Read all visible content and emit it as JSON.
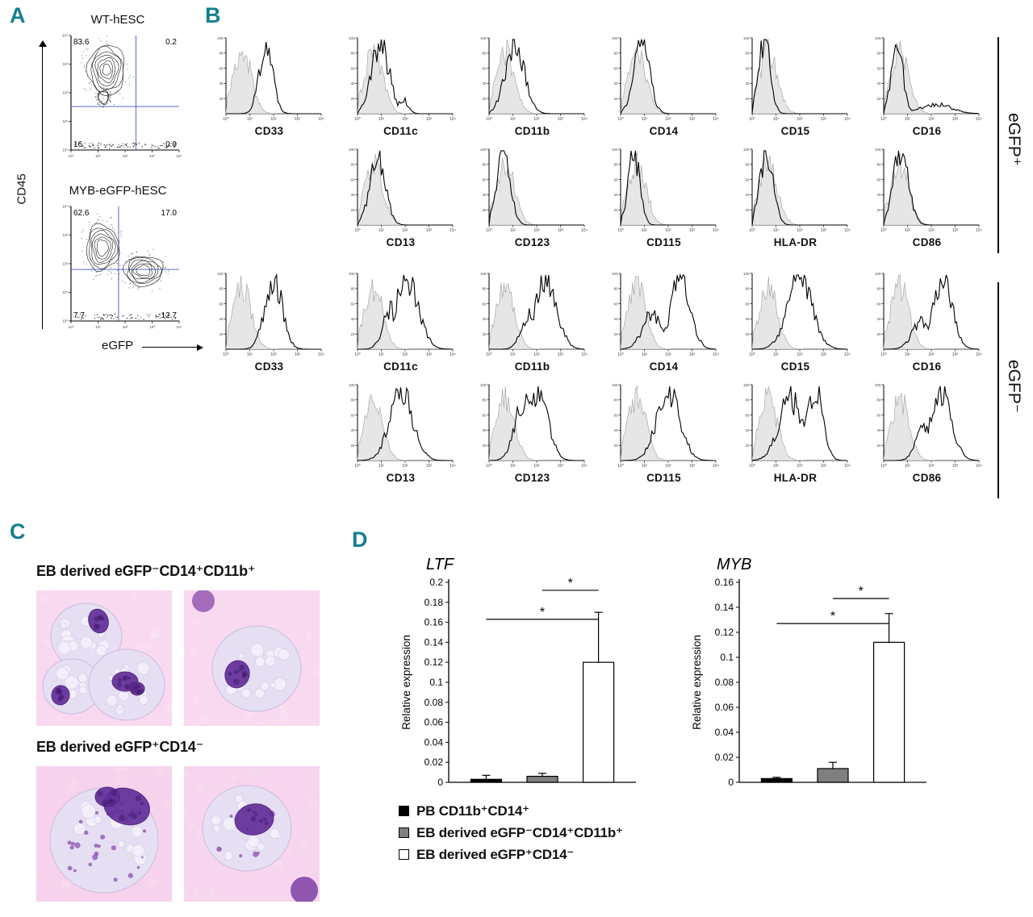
{
  "accent_color": "#15808d",
  "panel_a": {
    "label": "A",
    "y_axis": "CD45",
    "x_axis": "eGFP",
    "plots": [
      {
        "title": "WT-hESC",
        "q_ul": "83.6",
        "q_ur": "0.2",
        "q_ll": "16",
        "q_lr": "0.0"
      },
      {
        "title": "MYB-eGFP-hESC",
        "q_ul": "62.6",
        "q_ur": "17.0",
        "q_ll": "7.7",
        "q_lr": "12.7"
      }
    ]
  },
  "panel_b": {
    "label": "B",
    "groups": [
      {
        "label": "eGFP⁺",
        "rows": [
          {
            "offset": 0,
            "plots": [
              {
                "marker": "CD33",
                "c": 0.42,
                "w": 0.07,
                "h": 0.92
              },
              {
                "marker": "CD11c",
                "c": 0.24,
                "w": 0.09,
                "h": 0.92,
                "c2": 0.48,
                "w2": 0.05,
                "h2": 0.18
              },
              {
                "marker": "CD11b",
                "c": 0.27,
                "w": 0.1,
                "h": 0.9
              },
              {
                "marker": "CD14",
                "c": 0.22,
                "w": 0.08,
                "h": 0.92
              },
              {
                "marker": "CD15",
                "c": 0.13,
                "w": 0.06,
                "h": 0.95
              },
              {
                "marker": "CD16",
                "c": 0.14,
                "w": 0.06,
                "h": 0.9,
                "c2": 0.55,
                "w2": 0.16,
                "h2": 0.12
              }
            ]
          },
          {
            "offset": 1,
            "plots": [
              {
                "marker": "CD13",
                "c": 0.21,
                "w": 0.08,
                "h": 0.92
              },
              {
                "marker": "CD123",
                "c": 0.15,
                "w": 0.07,
                "h": 0.93
              },
              {
                "marker": "CD115",
                "c": 0.14,
                "w": 0.06,
                "h": 0.94
              },
              {
                "marker": "HLA-DR",
                "c": 0.15,
                "w": 0.07,
                "h": 0.93
              },
              {
                "marker": "CD86",
                "c": 0.18,
                "w": 0.08,
                "h": 0.92
              }
            ]
          }
        ]
      },
      {
        "label": "eGFP⁻",
        "rows": [
          {
            "offset": 0,
            "plots": [
              {
                "marker": "CD33",
                "c": 0.5,
                "w": 0.09,
                "h": 0.92
              },
              {
                "marker": "CD11c",
                "c": 0.52,
                "w": 0.12,
                "h": 0.88,
                "c2": 0.35,
                "w2": 0.08,
                "h2": 0.5
              },
              {
                "marker": "CD11b",
                "c": 0.6,
                "w": 0.11,
                "h": 0.9,
                "c2": 0.42,
                "w2": 0.08,
                "h2": 0.45
              },
              {
                "marker": "CD14",
                "c": 0.63,
                "w": 0.1,
                "h": 0.9,
                "c2": 0.33,
                "w2": 0.1,
                "h2": 0.45
              },
              {
                "marker": "CD15",
                "c": 0.5,
                "w": 0.13,
                "h": 0.88
              },
              {
                "marker": "CD16",
                "c": 0.62,
                "w": 0.1,
                "h": 0.9,
                "c2": 0.4,
                "w2": 0.1,
                "h2": 0.35
              }
            ]
          },
          {
            "offset": 1,
            "plots": [
              {
                "marker": "CD13",
                "c": 0.46,
                "w": 0.12,
                "h": 0.9
              },
              {
                "marker": "CD123",
                "c": 0.52,
                "w": 0.1,
                "h": 0.88,
                "c2": 0.36,
                "w2": 0.09,
                "h2": 0.75
              },
              {
                "marker": "CD115",
                "c": 0.5,
                "w": 0.12,
                "h": 0.9
              },
              {
                "marker": "HLA-DR",
                "c": 0.66,
                "w": 0.08,
                "h": 0.92,
                "c2": 0.4,
                "w2": 0.12,
                "h2": 0.8
              },
              {
                "marker": "CD86",
                "c": 0.6,
                "w": 0.11,
                "h": 0.9,
                "c2": 0.42,
                "w2": 0.08,
                "h2": 0.4
              }
            ]
          }
        ]
      }
    ]
  },
  "panel_c": {
    "label": "C",
    "sections": [
      {
        "title": "EB derived eGFP⁻CD14⁺CD11b⁺"
      },
      {
        "title": "EB derived eGFP⁺CD14⁻"
      }
    ]
  },
  "panel_d": {
    "label": "D",
    "legend": [
      {
        "label": "PB CD11b⁺CD14⁺",
        "color": "#000000"
      },
      {
        "label": "EB derived eGFP⁻CD14⁺CD11b⁺",
        "color": "#7f7f7f"
      },
      {
        "label": "EB derived eGFP⁺CD14⁻",
        "color": "#ffffff"
      }
    ]
  },
  "chart_data": [
    {
      "type": "bar",
      "title": "LTF",
      "ylabel": "Relative expression",
      "ylim": [
        0,
        0.2
      ],
      "ytick_step": 0.02,
      "categories": [
        "PB CD11b⁺CD14⁺",
        "EB derived eGFP⁻CD14⁺CD11b⁺",
        "EB derived eGFP⁺CD14⁻"
      ],
      "values": [
        0.003,
        0.006,
        0.12
      ],
      "errors": [
        0.004,
        0.003,
        0.05
      ],
      "bar_colors": [
        "#000000",
        "#7f7f7f",
        "#ffffff"
      ],
      "significance": [
        {
          "pair": [
            0,
            2
          ],
          "y": 0.163,
          "label": "*"
        },
        {
          "pair": [
            1,
            2
          ],
          "y": 0.192,
          "label": "*"
        }
      ],
      "grid": false,
      "legend_position": "below-left"
    },
    {
      "type": "bar",
      "title": "MYB",
      "ylabel": "Relative expression",
      "ylim": [
        0,
        0.16
      ],
      "ytick_step": 0.02,
      "categories": [
        "PB CD11b⁺CD14⁺",
        "EB derived eGFP⁻CD14⁺CD11b⁺",
        "EB derived eGFP⁺CD14⁻"
      ],
      "values": [
        0.003,
        0.011,
        0.112
      ],
      "errors": [
        0.001,
        0.005,
        0.023
      ],
      "bar_colors": [
        "#000000",
        "#7f7f7f",
        "#ffffff"
      ],
      "significance": [
        {
          "pair": [
            0,
            2
          ],
          "y": 0.127,
          "label": "*"
        },
        {
          "pair": [
            1,
            2
          ],
          "y": 0.147,
          "label": "*"
        }
      ],
      "grid": false,
      "legend_position": "below-left"
    }
  ]
}
